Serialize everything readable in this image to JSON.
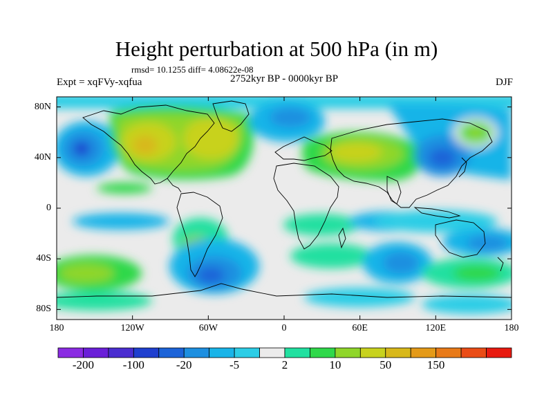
{
  "map": {
    "title": "Height perturbation at 500 hPa (in m)",
    "stats": "rmsd= 10.1255 diff= 4.08622e-08",
    "experiment": "Expt = xqFVy-xqfua",
    "period": "2752kyr BP - 0000kyr BP",
    "season": "DJF",
    "lat_labels": [
      "80N",
      "40N",
      "0",
      "40S",
      "80S"
    ],
    "lat_values": [
      80,
      40,
      0,
      -40,
      -80
    ],
    "lon_labels": [
      "180",
      "120W",
      "60W",
      "0",
      "60E",
      "120E",
      "180"
    ],
    "lon_values": [
      -180,
      -120,
      -60,
      0,
      60,
      120,
      180
    ],
    "lat_range": [
      -88,
      88
    ],
    "lon_range": [
      -180,
      180
    ]
  },
  "colorbar": {
    "labels": [
      "-200",
      "-100",
      "-20",
      "-5",
      "2",
      "10",
      "50",
      "150"
    ],
    "colors": [
      "#8a2be2",
      "#6a1fd8",
      "#4a2dd0",
      "#1f3fcf",
      "#1c63d8",
      "#1d8fe0",
      "#19b4e8",
      "#2ccde6",
      "#ebebeb",
      "#21e0a0",
      "#2fd84a",
      "#8fd62a",
      "#c8d21e",
      "#d8b81a",
      "#e49a18",
      "#e87a18",
      "#ea4c16",
      "#e81a10"
    ]
  }
}
